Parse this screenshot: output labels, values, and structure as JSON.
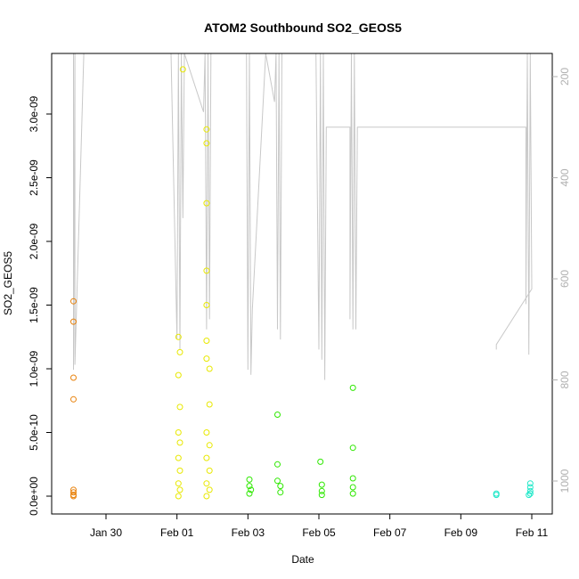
{
  "chart_data": {
    "type": "scatter",
    "title": "ATOM2 Southbound SO2_GEOS5",
    "xlabel": "Date",
    "ylabel": "SO2_GEOS5",
    "x_unit": "day of Jan-Feb 2017 (day index from Jan 28 00:00)",
    "xlim": [
      "2017-01-28",
      "2017-02-11"
    ],
    "ylim": [
      0,
      3.45e-09
    ],
    "x_tick_labels": [
      "Jan 30",
      "Feb 01",
      "Feb 03",
      "Feb 05",
      "Feb 07",
      "Feb 09",
      "Feb 11"
    ],
    "y_tick_labels": [
      "0.0e+00",
      "5.0e-10",
      "1.0e-09",
      "1.5e-09",
      "2.0e-09",
      "2.5e-09",
      "3.0e-09"
    ],
    "y_ticks": [
      0,
      5e-10,
      1e-09,
      1.5e-09,
      2e-09,
      2.5e-09,
      3e-09
    ],
    "right_axis": {
      "tick_labels": [
        "200",
        "400",
        "600",
        "800",
        "1000"
      ],
      "ticks": [
        200,
        400,
        600,
        800,
        1000
      ],
      "range": [
        125,
        1050
      ],
      "reversed": true,
      "color": "#b0b0b0"
    },
    "grid": false,
    "legend": "none",
    "series": [
      {
        "color": "#E8820C",
        "points": [
          [
            "2017-01-29T02:00",
            1.53e-09
          ],
          [
            "2017-01-29T02:00",
            1.37e-09
          ],
          [
            "2017-01-29T02:00",
            9.3e-10
          ],
          [
            "2017-01-29T02:00",
            7.6e-10
          ],
          [
            "2017-01-29T02:00",
            5e-11
          ],
          [
            "2017-01-29T02:00",
            3e-11
          ],
          [
            "2017-01-29T02:00",
            1e-11
          ],
          [
            "2017-01-29T02:00",
            0
          ]
        ]
      },
      {
        "color": "#E8E800",
        "points": [
          [
            "2017-02-01T01:00",
            1.25e-09
          ],
          [
            "2017-02-01T02:00",
            1.13e-09
          ],
          [
            "2017-02-01T01:00",
            9.5e-10
          ],
          [
            "2017-02-01T02:00",
            7e-10
          ],
          [
            "2017-02-01T01:00",
            5e-10
          ],
          [
            "2017-02-01T02:00",
            4.2e-10
          ],
          [
            "2017-02-01T01:00",
            3e-10
          ],
          [
            "2017-02-01T02:00",
            2e-10
          ],
          [
            "2017-02-01T01:00",
            1e-10
          ],
          [
            "2017-02-01T02:00",
            5e-11
          ],
          [
            "2017-02-01T01:00",
            0
          ],
          [
            "2017-02-01T04:00",
            3.35e-09
          ],
          [
            "2017-02-01T20:00",
            2.88e-09
          ],
          [
            "2017-02-01T20:00",
            2.77e-09
          ],
          [
            "2017-02-01T20:00",
            2.3e-09
          ],
          [
            "2017-02-01T20:00",
            1.77e-09
          ],
          [
            "2017-02-01T20:00",
            1.5e-09
          ],
          [
            "2017-02-01T20:00",
            1.22e-09
          ],
          [
            "2017-02-01T20:00",
            1.08e-09
          ],
          [
            "2017-02-01T22:00",
            1e-09
          ],
          [
            "2017-02-01T22:00",
            7.2e-10
          ],
          [
            "2017-02-01T20:00",
            5e-10
          ],
          [
            "2017-02-01T22:00",
            4e-10
          ],
          [
            "2017-02-01T20:00",
            3e-10
          ],
          [
            "2017-02-01T22:00",
            2e-10
          ],
          [
            "2017-02-01T20:00",
            1e-10
          ],
          [
            "2017-02-01T22:00",
            5e-11
          ],
          [
            "2017-02-01T20:00",
            0
          ]
        ]
      },
      {
        "color": "#2EE800",
        "points": [
          [
            "2017-02-03T01:00",
            1.3e-10
          ],
          [
            "2017-02-03T01:00",
            8e-11
          ],
          [
            "2017-02-03T02:00",
            5e-11
          ],
          [
            "2017-02-03T01:00",
            2e-11
          ],
          [
            "2017-02-03T20:00",
            6.4e-10
          ],
          [
            "2017-02-03T20:00",
            2.5e-10
          ],
          [
            "2017-02-03T20:00",
            1.2e-10
          ],
          [
            "2017-02-03T22:00",
            8e-11
          ],
          [
            "2017-02-03T22:00",
            3e-11
          ],
          [
            "2017-02-05T01:00",
            2.7e-10
          ],
          [
            "2017-02-05T02:00",
            9e-11
          ],
          [
            "2017-02-05T02:00",
            4e-11
          ],
          [
            "2017-02-05T02:00",
            1e-11
          ],
          [
            "2017-02-05T23:00",
            8.5e-10
          ],
          [
            "2017-02-05T23:00",
            3.8e-10
          ],
          [
            "2017-02-05T23:00",
            1.4e-10
          ],
          [
            "2017-02-05T23:00",
            7e-11
          ],
          [
            "2017-02-05T23:00",
            2e-11
          ]
        ]
      },
      {
        "color": "#1EE8C8",
        "points": [
          [
            "2017-02-10T00:00",
            2e-11
          ],
          [
            "2017-02-10T00:00",
            1e-11
          ],
          [
            "2017-02-10T23:00",
            1e-10
          ],
          [
            "2017-02-10T23:00",
            7e-11
          ],
          [
            "2017-02-10T23:00",
            4e-11
          ],
          [
            "2017-02-10T23:00",
            2e-11
          ],
          [
            "2017-02-10T22:00",
            1e-11
          ]
        ]
      }
    ],
    "pressure_track": {
      "axis": "right",
      "color": "#c8c8c8",
      "points": [
        [
          "2017-01-29T02:00",
          125
        ],
        [
          "2017-01-29T02:00",
          780
        ],
        [
          "2017-01-29T03:00",
          125
        ],
        [
          "2017-01-29T03:00",
          770
        ],
        [
          "2017-01-29T09:00",
          125
        ],
        [
          "2017-01-31T20:00",
          125
        ],
        [
          "2017-02-01T00:00",
          720
        ],
        [
          "2017-02-01T01:00",
          125
        ],
        [
          "2017-02-01T02:00",
          740
        ],
        [
          "2017-02-01T03:00",
          125
        ],
        [
          "2017-02-01T04:00",
          480
        ],
        [
          "2017-02-01T05:00",
          125
        ],
        [
          "2017-02-01T18:00",
          270
        ],
        [
          "2017-02-01T19:00",
          125
        ],
        [
          "2017-02-01T20:00",
          700
        ],
        [
          "2017-02-01T21:00",
          125
        ],
        [
          "2017-02-01T22:00",
          680
        ],
        [
          "2017-02-01T23:00",
          125
        ],
        [
          "2017-02-02T00:00",
          125
        ],
        [
          "2017-02-02T12:00",
          125
        ],
        [
          "2017-02-02T23:00",
          125
        ],
        [
          "2017-02-03T00:00",
          780
        ],
        [
          "2017-02-03T01:00",
          125
        ],
        [
          "2017-02-03T02:00",
          790
        ],
        [
          "2017-02-03T03:00",
          660
        ],
        [
          "2017-02-03T12:00",
          125
        ],
        [
          "2017-02-03T18:00",
          250
        ],
        [
          "2017-02-03T19:00",
          125
        ],
        [
          "2017-02-03T20:00",
          700
        ],
        [
          "2017-02-03T21:00",
          125
        ],
        [
          "2017-02-03T22:00",
          720
        ],
        [
          "2017-02-03T23:00",
          125
        ],
        [
          "2017-02-04T00:00",
          125
        ],
        [
          "2017-02-04T20:00",
          125
        ],
        [
          "2017-02-04T22:00",
          125
        ],
        [
          "2017-02-05T00:00",
          740
        ],
        [
          "2017-02-05T01:00",
          125
        ],
        [
          "2017-02-05T02:00",
          760
        ],
        [
          "2017-02-05T03:00",
          125
        ],
        [
          "2017-02-05T04:00",
          800
        ],
        [
          "2017-02-05T05:00",
          300
        ],
        [
          "2017-02-05T21:00",
          300
        ],
        [
          "2017-02-05T21:00",
          680
        ],
        [
          "2017-02-05T22:00",
          125
        ],
        [
          "2017-02-05T23:00",
          700
        ],
        [
          "2017-02-06T00:00",
          125
        ],
        [
          "2017-02-06T01:00",
          700
        ],
        [
          "2017-02-06T02:00",
          300
        ],
        [
          "2017-02-10T20:00",
          300
        ],
        [
          "2017-02-10T20:00",
          650
        ],
        [
          "2017-02-10T21:00",
          125
        ],
        [
          "2017-02-10T22:00",
          750
        ],
        [
          "2017-02-10T23:00",
          125
        ],
        [
          "2017-02-11T00:00",
          620
        ],
        [
          "2017-02-10T00:00",
          730
        ],
        [
          "2017-02-10T00:00",
          740
        ]
      ]
    }
  }
}
